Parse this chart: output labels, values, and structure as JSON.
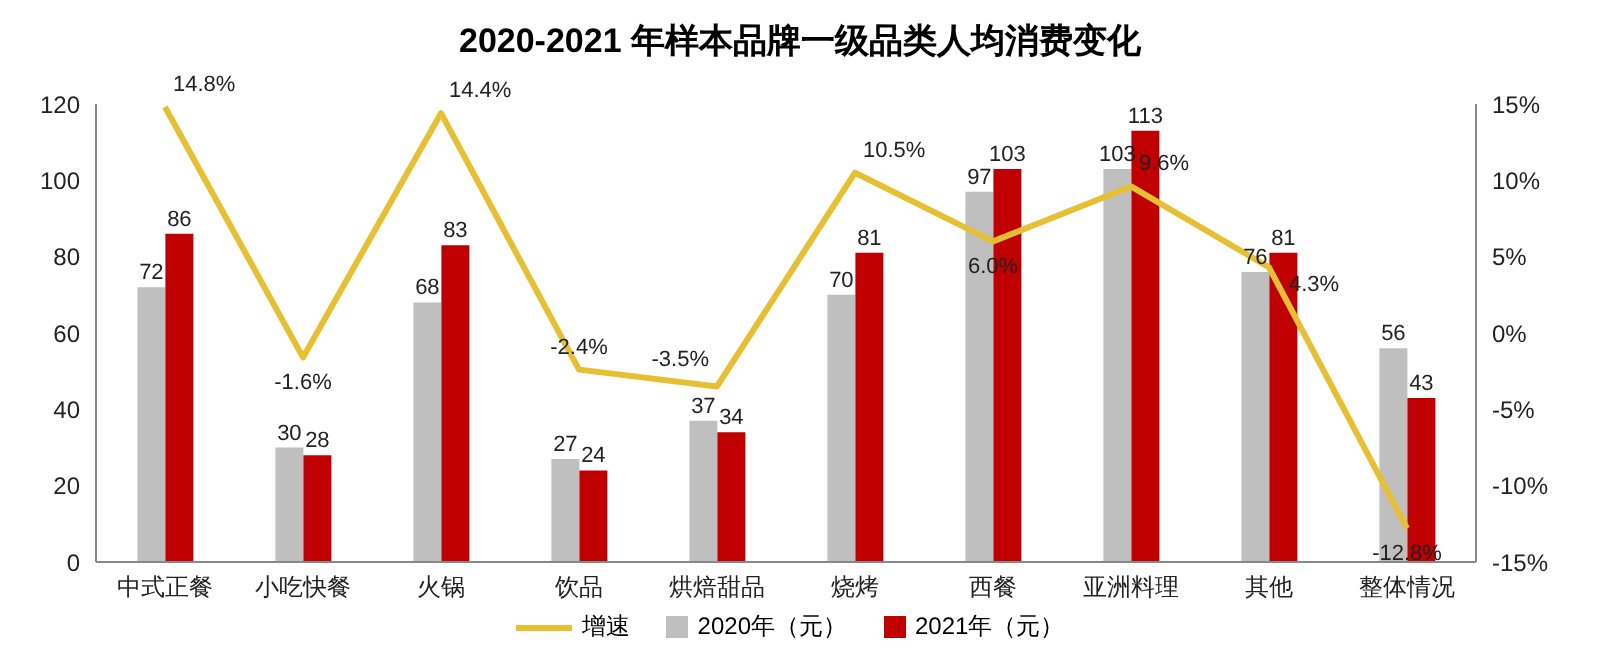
{
  "chart_data": {
    "type": "bar",
    "title": "2020-2021 年样本品牌一级品类人均消费变化",
    "categories": [
      "中式正餐",
      "小吃快餐",
      "火锅",
      "饮品",
      "烘焙甜品",
      "烧烤",
      "西餐",
      "亚洲料理",
      "其他",
      "整体情况"
    ],
    "series": [
      {
        "name": "增速",
        "type": "line",
        "axis": "y2",
        "color": "#e6c032",
        "values": [
          14.8,
          -1.6,
          14.4,
          -2.4,
          -3.5,
          10.5,
          6.0,
          9.6,
          4.3,
          -12.8
        ],
        "value_labels": [
          "14.8%",
          "-1.6%",
          "14.4%",
          "-2.4%",
          "-3.5%",
          "10.5%",
          "6.0%",
          "9.6%",
          "4.3%",
          "-12.8%"
        ]
      },
      {
        "name": "2020年（元）",
        "color": "#bfbfbf",
        "values": [
          72,
          30,
          68,
          27,
          37,
          70,
          97,
          103,
          76,
          56
        ],
        "value_labels": [
          "72",
          "30",
          "68",
          "27",
          "37",
          "70",
          "97",
          "103",
          "76",
          "56"
        ]
      },
      {
        "name": "2021年（元）",
        "color": "#c00000",
        "values": [
          86,
          28,
          83,
          24,
          34,
          81,
          103,
          113,
          81,
          43
        ],
        "value_labels": [
          "86",
          "28",
          "83",
          "24",
          "34",
          "81",
          "103",
          "113",
          "81",
          "43"
        ]
      }
    ],
    "ylim": [
      0,
      120
    ],
    "yticks": [
      0,
      20,
      40,
      60,
      80,
      100,
      120
    ],
    "y2lim": [
      -15,
      15
    ],
    "y2ticks": [
      {
        "value": -15,
        "label": "-15%"
      },
      {
        "value": -10,
        "label": "-10%"
      },
      {
        "value": -5,
        "label": "-5%"
      },
      {
        "value": 0,
        "label": "0%"
      },
      {
        "value": 5,
        "label": "5%"
      },
      {
        "value": 10,
        "label": "10%"
      },
      {
        "value": 15,
        "label": "15%"
      }
    ],
    "legend": "bottom",
    "grid": false,
    "marker": "none",
    "line_style": "solid"
  }
}
